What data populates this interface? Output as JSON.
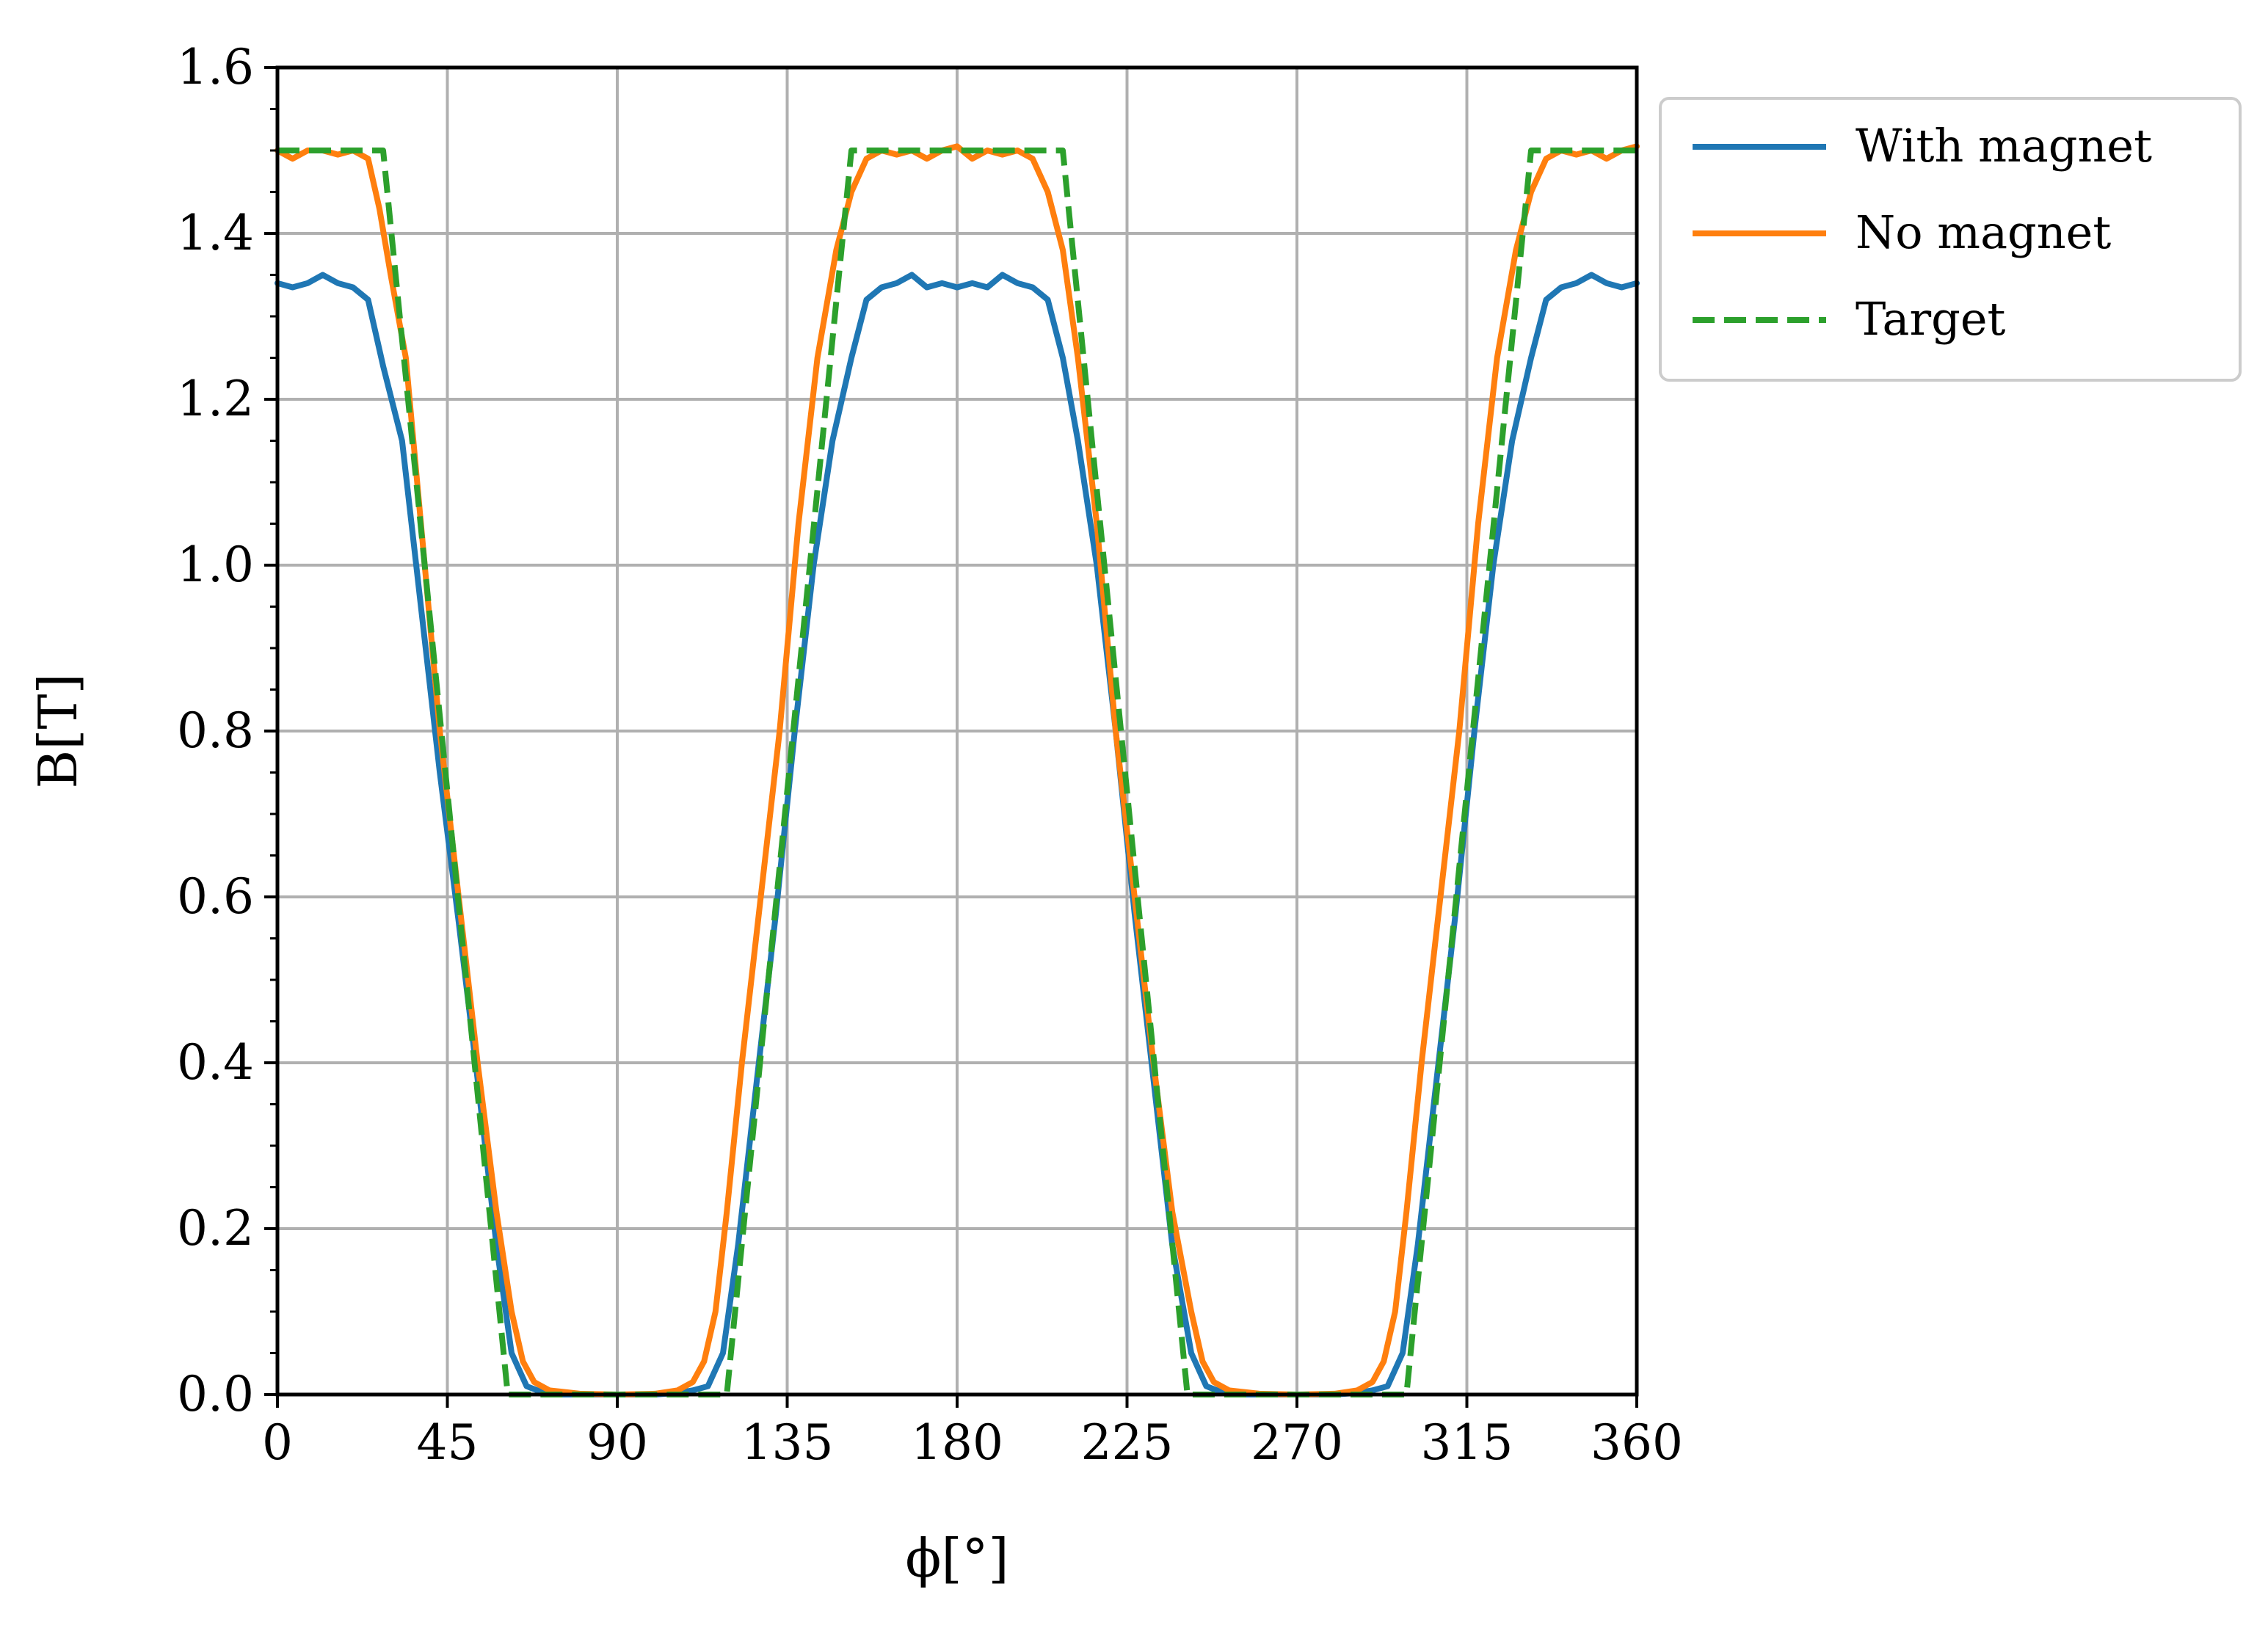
{
  "chart_data": {
    "type": "line",
    "xlabel": "ϕ[°]",
    "ylabel": "B[T]",
    "xlim": [
      0,
      360
    ],
    "ylim": [
      0,
      1.6
    ],
    "xticks": [
      "0",
      "45",
      "90",
      "135",
      "180",
      "225",
      "270",
      "315",
      "360"
    ],
    "yticks": [
      "0.0",
      "0.2",
      "0.4",
      "0.6",
      "0.8",
      "1.0",
      "1.2",
      "1.4",
      "1.6"
    ],
    "grid": true,
    "legend_position": "outside-top-right",
    "series": [
      {
        "name": "With magnet",
        "color": "#1f77b4",
        "style": "solid",
        "x": [
          0,
          4,
          8,
          12,
          16,
          20,
          24,
          28,
          33,
          38,
          43,
          48,
          53,
          58,
          62,
          66,
          70,
          75,
          80,
          90,
          100,
          106,
          110,
          114,
          118,
          122,
          127,
          132,
          137,
          142,
          147,
          152,
          156,
          160,
          164,
          168,
          172,
          176,
          180,
          184,
          188,
          192,
          196,
          200,
          204,
          208,
          212,
          217,
          222,
          227,
          232,
          237,
          242,
          246,
          250,
          254,
          260,
          270,
          280,
          286,
          290,
          294,
          298,
          302,
          307,
          312,
          317,
          322,
          327,
          332,
          336,
          340,
          344,
          348,
          352,
          356,
          360
        ],
        "y": [
          1.34,
          1.335,
          1.34,
          1.35,
          1.34,
          1.335,
          1.32,
          1.24,
          1.15,
          0.95,
          0.75,
          0.57,
          0.38,
          0.18,
          0.05,
          0.01,
          0.003,
          0.0,
          0.0,
          0.0,
          0.0,
          0.002,
          0.005,
          0.01,
          0.05,
          0.18,
          0.38,
          0.58,
          0.8,
          1.0,
          1.15,
          1.25,
          1.32,
          1.335,
          1.34,
          1.35,
          1.335,
          1.34,
          1.335,
          1.34,
          1.335,
          1.35,
          1.34,
          1.335,
          1.32,
          1.25,
          1.15,
          1.0,
          0.8,
          0.58,
          0.38,
          0.18,
          0.05,
          0.01,
          0.003,
          0.0,
          0.0,
          0.0,
          0.0,
          0.002,
          0.005,
          0.01,
          0.05,
          0.18,
          0.38,
          0.58,
          0.8,
          1.0,
          1.15,
          1.25,
          1.32,
          1.335,
          1.34,
          1.35,
          1.34,
          1.335,
          1.34
        ]
      },
      {
        "name": "No magnet",
        "color": "#ff7f0e",
        "style": "solid",
        "x": [
          0,
          4,
          8,
          12,
          16,
          20,
          24,
          27,
          30,
          34,
          38,
          43,
          48,
          53,
          58,
          62,
          65,
          68,
          72,
          80,
          90,
          100,
          106,
          110,
          113,
          116,
          119,
          123,
          128,
          133,
          138,
          143,
          148,
          152,
          156,
          160,
          164,
          168,
          172,
          176,
          180,
          184,
          188,
          192,
          196,
          200,
          204,
          208,
          212,
          217,
          222,
          227,
          232,
          237,
          242,
          245,
          248,
          252,
          260,
          270,
          280,
          286,
          290,
          293,
          296,
          299,
          303,
          308,
          313,
          318,
          323,
          328,
          332,
          336,
          340,
          344,
          348,
          352,
          356,
          360
        ],
        "y": [
          1.5,
          1.49,
          1.5,
          1.5,
          1.495,
          1.5,
          1.49,
          1.43,
          1.35,
          1.25,
          1.05,
          0.8,
          0.6,
          0.4,
          0.22,
          0.1,
          0.04,
          0.015,
          0.005,
          0.001,
          0.0,
          0.001,
          0.005,
          0.015,
          0.04,
          0.1,
          0.22,
          0.4,
          0.6,
          0.8,
          1.05,
          1.25,
          1.38,
          1.45,
          1.49,
          1.5,
          1.495,
          1.5,
          1.49,
          1.5,
          1.505,
          1.49,
          1.5,
          1.495,
          1.5,
          1.49,
          1.45,
          1.38,
          1.25,
          1.05,
          0.8,
          0.6,
          0.4,
          0.22,
          0.1,
          0.04,
          0.015,
          0.005,
          0.001,
          0.0,
          0.001,
          0.005,
          0.015,
          0.04,
          0.1,
          0.22,
          0.4,
          0.6,
          0.8,
          1.05,
          1.25,
          1.38,
          1.45,
          1.49,
          1.5,
          1.495,
          1.5,
          1.49,
          1.5,
          1.505
        ]
      },
      {
        "name": "Target",
        "color": "#2ca02c",
        "style": "dashed",
        "x": [
          0,
          28,
          61,
          61,
          119,
          119,
          152,
          208,
          241,
          241,
          299,
          299,
          332,
          360
        ],
        "y": [
          1.5,
          1.5,
          0.0,
          0.0,
          0.0,
          0.0,
          1.5,
          1.5,
          0.0,
          0.0,
          0.0,
          0.0,
          1.5,
          1.5
        ]
      }
    ]
  }
}
